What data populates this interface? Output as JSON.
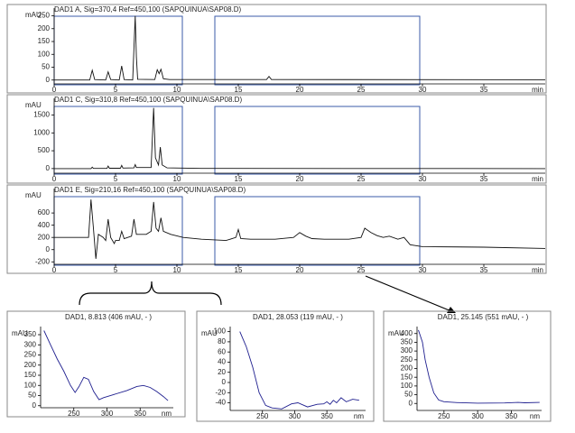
{
  "chart_data": [
    {
      "type": "line",
      "title": "DAD1 A, Sig=370,4 Ref=450,100 (SAPQUINUA\\SAP08.D)",
      "title_color": "#000000",
      "y_label": "mAU",
      "x_label": "min",
      "color": "#111111",
      "xlim": [
        0,
        40
      ],
      "xticks": [
        0,
        5,
        10,
        15,
        20,
        25,
        30,
        35
      ],
      "ylim": [
        -15,
        280
      ],
      "yticks": [
        0,
        50,
        100,
        150,
        200,
        250
      ],
      "x": [
        0,
        2.9,
        3.1,
        3.3,
        4.2,
        4.4,
        4.6,
        5.3,
        5.5,
        5.7,
        6.4,
        6.6,
        6.7,
        6.8,
        8.2,
        8.4,
        8.55,
        8.7,
        8.9,
        9.4,
        17.3,
        17.5,
        17.7,
        40
      ],
      "values": [
        0,
        0,
        38,
        2,
        0,
        32,
        2,
        0,
        55,
        2,
        0,
        250,
        90,
        3,
        2,
        40,
        25,
        42,
        5,
        2,
        2,
        14,
        2,
        1
      ]
    },
    {
      "type": "line",
      "title": "DAD1 C, Sig=310,8 Ref=450,100 (SAPQUINUA\\SAP08.D)",
      "title_color": "#000000",
      "y_label": "mAU",
      "x_label": "min",
      "color": "#111111",
      "xlim": [
        0,
        40
      ],
      "xticks": [
        0,
        5,
        10,
        15,
        20,
        25,
        30,
        35
      ],
      "ylim": [
        -130,
        1970
      ],
      "yticks": [
        0,
        500,
        1000,
        1500
      ],
      "x": [
        0,
        3.0,
        3.1,
        3.2,
        4.3,
        4.4,
        4.5,
        5.4,
        5.5,
        5.6,
        6.5,
        6.6,
        6.7,
        7.9,
        8.1,
        8.25,
        8.5,
        8.65,
        8.8,
        9.2,
        12,
        40
      ],
      "values": [
        0,
        0,
        40,
        5,
        5,
        70,
        10,
        10,
        90,
        15,
        20,
        110,
        30,
        30,
        1700,
        300,
        100,
        600,
        100,
        20,
        5,
        0
      ]
    },
    {
      "type": "line",
      "title": "DAD1 E, Sig=210,16 Ref=450,100 (SAPQUINUA\\SAP08.D)",
      "title_color": "#000000",
      "y_label": "mAU",
      "x_label": "min",
      "color": "#111111",
      "xlim": [
        0,
        40
      ],
      "xticks": [
        0,
        5,
        10,
        15,
        20,
        25,
        30,
        35
      ],
      "ylim": [
        -240,
        1000
      ],
      "yticks": [
        -200,
        0,
        200,
        400,
        600
      ],
      "x": [
        0,
        2.8,
        3.0,
        3.2,
        3.4,
        3.6,
        4.0,
        4.2,
        4.4,
        4.6,
        4.9,
        5.0,
        5.3,
        5.5,
        5.7,
        6.3,
        6.5,
        6.7,
        7.5,
        7.9,
        8.1,
        8.3,
        8.5,
        8.7,
        8.9,
        9.5,
        10.5,
        12,
        14,
        14.8,
        15.0,
        15.2,
        16,
        18,
        19.5,
        20,
        20.5,
        21,
        22,
        24,
        25,
        25.3,
        25.8,
        26.3,
        26.8,
        27.3,
        28,
        28.5,
        29,
        30,
        35,
        40
      ],
      "values": [
        200,
        200,
        820,
        350,
        -150,
        250,
        200,
        150,
        500,
        200,
        100,
        150,
        150,
        300,
        180,
        220,
        500,
        250,
        250,
        300,
        780,
        350,
        300,
        520,
        300,
        250,
        200,
        170,
        150,
        200,
        330,
        180,
        170,
        170,
        200,
        280,
        220,
        180,
        170,
        170,
        200,
        350,
        280,
        230,
        200,
        220,
        170,
        200,
        80,
        50,
        40,
        20
      ]
    },
    {
      "type": "line",
      "title": "DAD1, 8.813 (406 mAU, - )",
      "title_color": "#2b2b9a",
      "y_label": "mAU",
      "x_label": "nm",
      "color": "#1f1f8f",
      "xlim": [
        200,
        400
      ],
      "xticks": [
        250,
        300,
        350
      ],
      "ylim": [
        -10,
        390
      ],
      "yticks": [
        0,
        50,
        100,
        150,
        200,
        250,
        300,
        350
      ],
      "x": [
        205,
        215,
        225,
        235,
        245,
        252,
        258,
        265,
        272,
        280,
        288,
        295,
        310,
        330,
        345,
        355,
        365,
        375,
        385,
        392
      ],
      "values": [
        370,
        300,
        230,
        170,
        100,
        65,
        95,
        140,
        130,
        70,
        30,
        40,
        55,
        75,
        95,
        100,
        90,
        70,
        45,
        25
      ]
    },
    {
      "type": "line",
      "title": "DAD1, 28.053 (119 mAU, - )",
      "title_color": "#2b2b9a",
      "y_label": "mAU",
      "x_label": "nm",
      "color": "#1f1f8f",
      "xlim": [
        200,
        410
      ],
      "xticks": [
        250,
        300,
        350
      ],
      "ylim": [
        -55,
        110
      ],
      "yticks": [
        -40,
        -20,
        0,
        20,
        40,
        60,
        80,
        100
      ],
      "x": [
        215,
        225,
        235,
        245,
        255,
        265,
        280,
        295,
        305,
        320,
        335,
        345,
        350,
        355,
        360,
        365,
        372,
        380,
        390,
        400
      ],
      "values": [
        100,
        70,
        30,
        -20,
        -45,
        -50,
        -52,
        -42,
        -40,
        -48,
        -43,
        -42,
        -38,
        -43,
        -35,
        -40,
        -30,
        -38,
        -33,
        -35
      ]
    },
    {
      "type": "line",
      "title": "DAD1, 25.145 (551 mAU, - )",
      "title_color": "#2b2b9a",
      "y_label": "mAU",
      "x_label": "nm",
      "color": "#1f1f8f",
      "xlim": [
        210,
        395
      ],
      "xticks": [
        250,
        300,
        350
      ],
      "ylim": [
        -40,
        440
      ],
      "yticks": [
        0,
        50,
        100,
        150,
        200,
        250,
        300,
        350,
        400
      ],
      "x": [
        212,
        218,
        222,
        228,
        235,
        242,
        250,
        270,
        300,
        340,
        360,
        370,
        392
      ],
      "values": [
        420,
        350,
        250,
        150,
        60,
        20,
        10,
        5,
        2,
        3,
        6,
        4,
        6
      ]
    }
  ]
}
